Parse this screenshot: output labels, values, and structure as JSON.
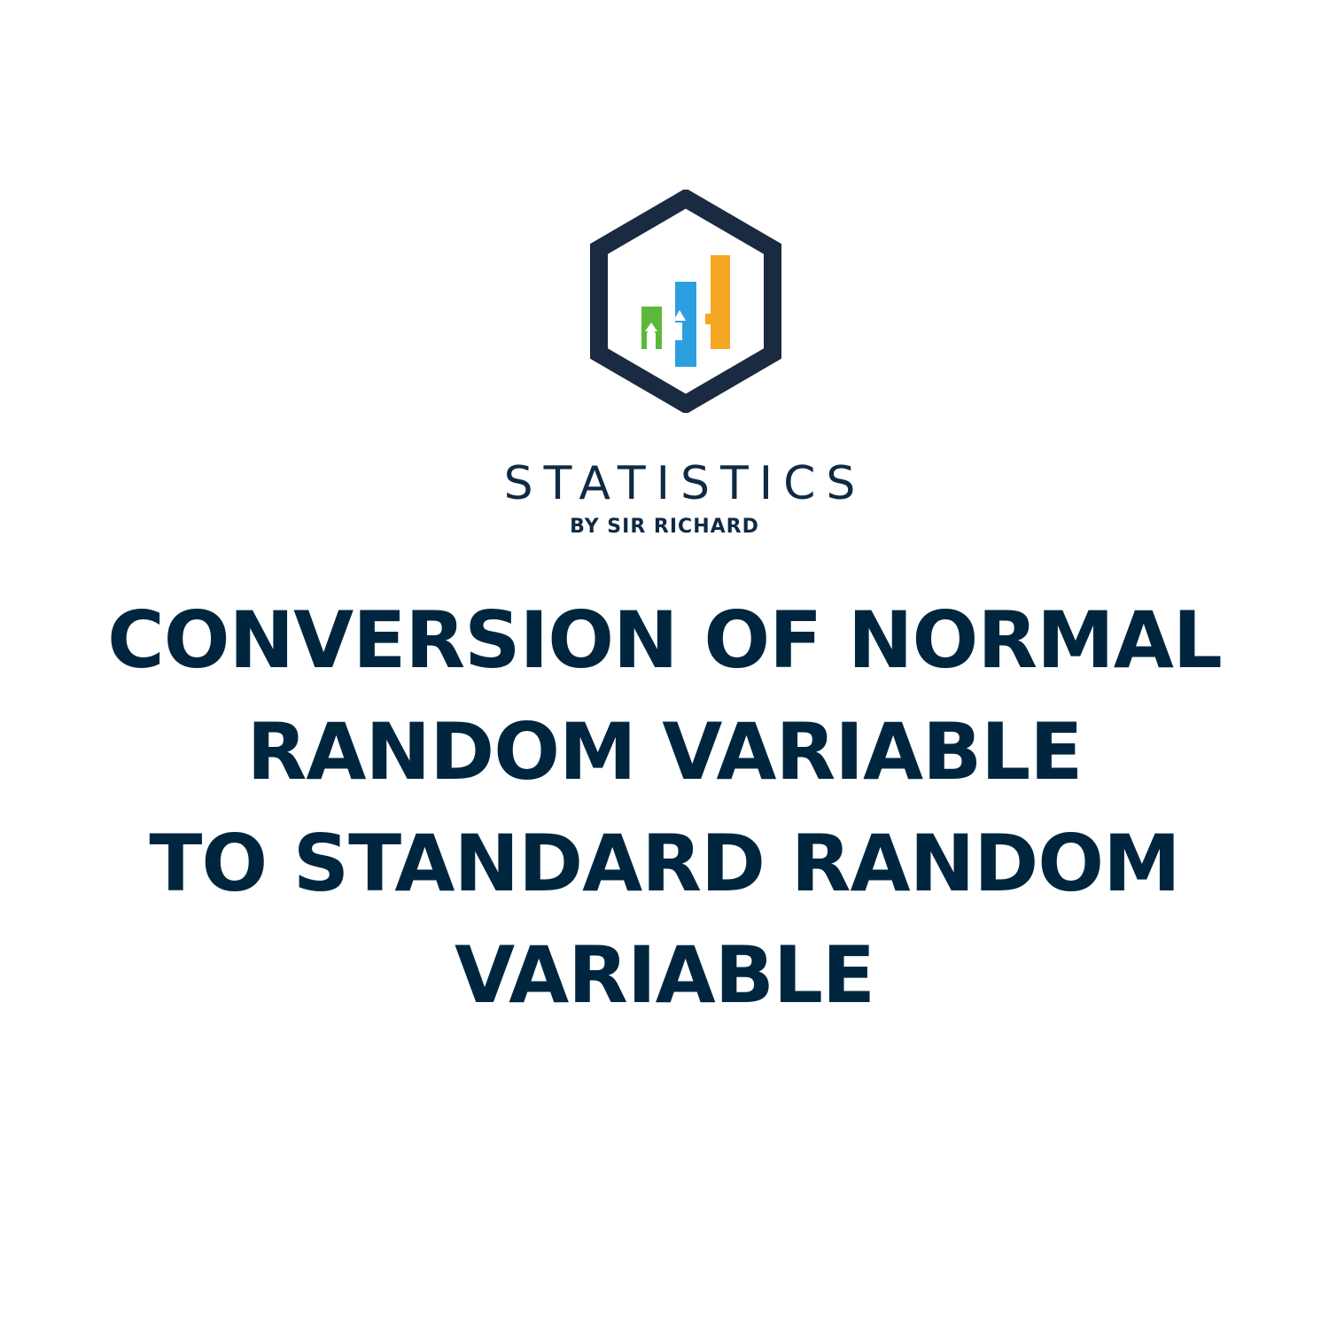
{
  "brand": {
    "name": "STATISTICS",
    "tagline": "BY SIR RICHARD",
    "logo_icon": "hexagon-bar-chart-icon",
    "colors": {
      "hexagon": "#1a2a40",
      "bar_green": "#5cb83a",
      "bar_blue": "#2d9fe0",
      "bar_orange": "#f5a623",
      "text": "#00263f"
    }
  },
  "title": {
    "lines": [
      "CONVERSION OF NORMAL",
      "RANDOM VARIABLE",
      "TO STANDARD RANDOM",
      "VARIABLE"
    ]
  }
}
